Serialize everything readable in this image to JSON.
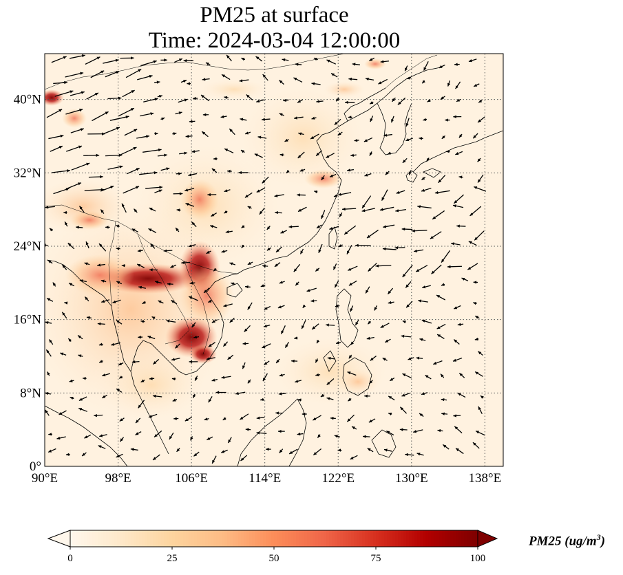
{
  "title": {
    "line1": "PM25 at surface",
    "line2": "Time: 2024-03-04 12:00:00"
  },
  "map": {
    "projection": "PlateCarree",
    "lon_range": [
      90,
      140
    ],
    "lat_range": [
      0,
      45
    ],
    "gridlines": "dotted",
    "features": [
      "coastlines",
      "country-borders",
      "wind-vectors"
    ],
    "x_ticks": [
      "90°E",
      "98°E",
      "106°E",
      "114°E",
      "122°E",
      "130°E",
      "138°E"
    ],
    "y_ticks": [
      "0°",
      "8°N",
      "16°N",
      "24°N",
      "32°N",
      "40°N"
    ]
  },
  "colorbar": {
    "cmap": "OrRd",
    "colors": [
      "#fff7ec",
      "#fee8c8",
      "#fdd49e",
      "#fdbb84",
      "#fc8d59",
      "#ef6548",
      "#d7301f",
      "#b30000",
      "#7f0000"
    ],
    "extend": "both",
    "range": [
      0,
      100
    ],
    "ticks": [
      "0",
      "25",
      "50",
      "75",
      "100"
    ],
    "label_var": "PM25 (ug/m",
    "label_exp": "3",
    "label_close": ")"
  }
}
